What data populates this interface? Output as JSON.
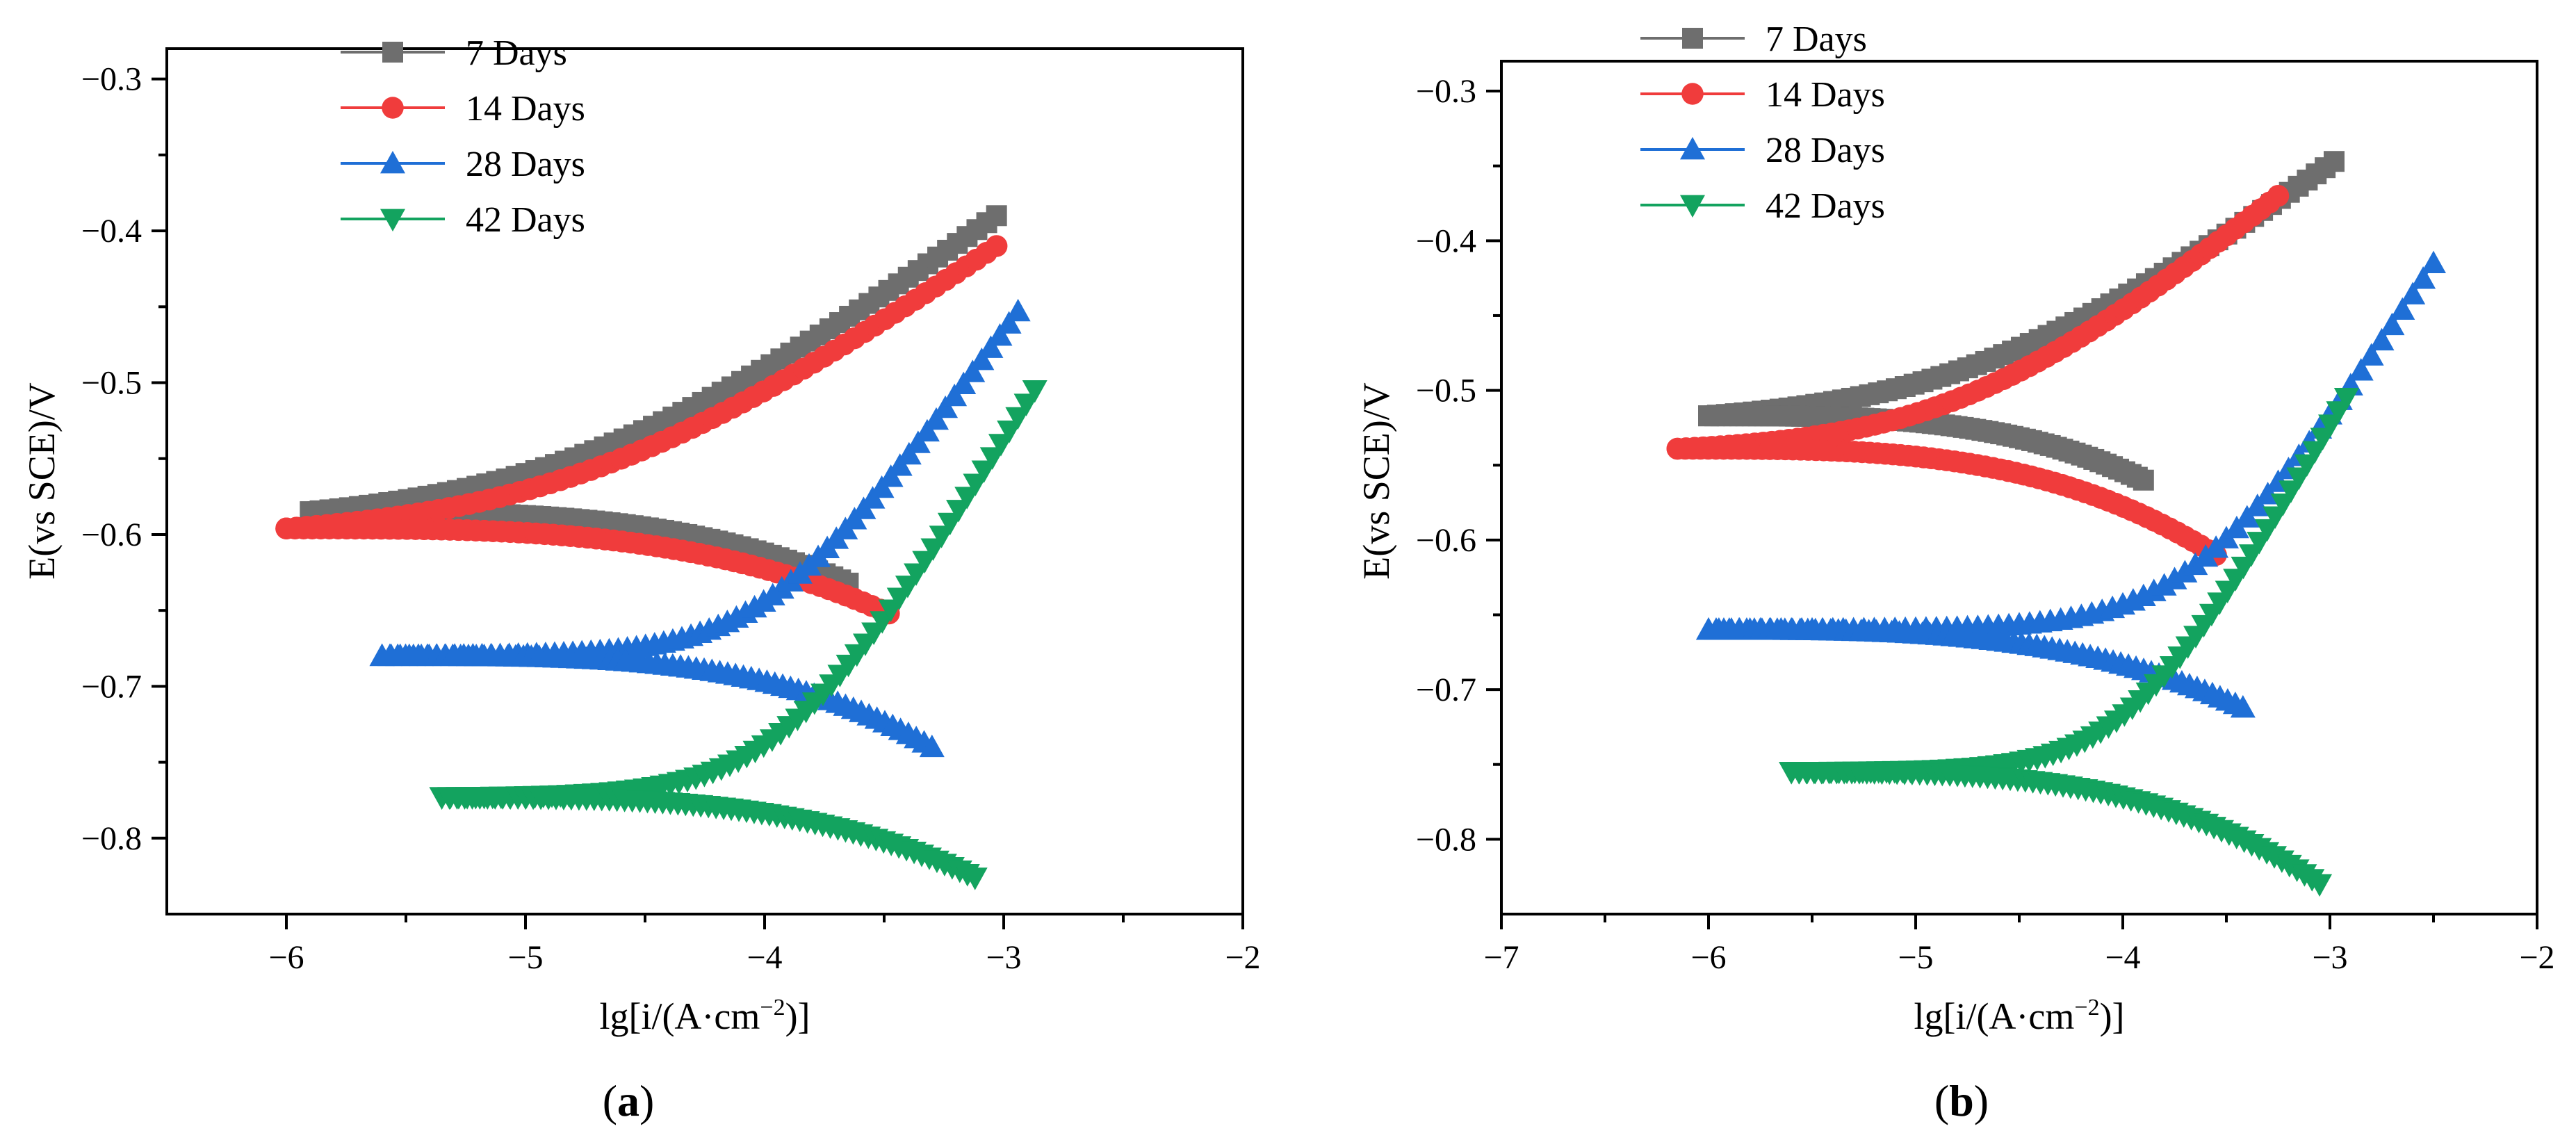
{
  "figure": {
    "panel_labels": [
      {
        "open": "(",
        "letter": "a",
        "close": ")"
      },
      {
        "open": "(",
        "letter": "b",
        "close": ")"
      }
    ]
  },
  "series_styles": [
    {
      "name": "7 Days",
      "color": "#6e6e6e",
      "marker": "square"
    },
    {
      "name": "14 Days",
      "color": "#f03c3c",
      "marker": "circle"
    },
    {
      "name": "28 Days",
      "color": "#1f6fd6",
      "marker": "triangle-up"
    },
    {
      "name": "42 Days",
      "color": "#13a35f",
      "marker": "triangle-down"
    }
  ],
  "chart_data": [
    {
      "type": "line",
      "panel": "a",
      "xlabel": {
        "base": "lg[i/(A·cm",
        "sup": "−2",
        "tail": ")]"
      },
      "ylabel": "E(vs SCE)/V",
      "xlim": [
        -6.5,
        -2
      ],
      "ylim": [
        -0.85,
        -0.28
      ],
      "x_ticks": [
        -6,
        -5,
        -4,
        -3,
        -2
      ],
      "x_tick_labels": [
        "−6",
        "−5",
        "−4",
        "−3",
        "−2"
      ],
      "y_ticks": [
        -0.8,
        -0.7,
        -0.6,
        -0.5,
        -0.4,
        -0.3
      ],
      "y_tick_labels": [
        "−0.8",
        "−0.7",
        "−0.6",
        "−0.5",
        "−0.4",
        "−0.3"
      ],
      "legend": [
        "7 Days",
        "14 Days",
        "28 Days",
        "42 Days"
      ],
      "legend_position": "top-left",
      "series": [
        {
          "name": "7 Days",
          "Ecorr": -0.585,
          "x_start": -5.9,
          "anodic_end": [
            -3.03,
            -0.39
          ],
          "cathodic_end": [
            -3.65,
            -0.632
          ],
          "cathodic_curvature": 2.0,
          "anodic_knee": 0.6
        },
        {
          "name": "14 Days",
          "Ecorr": -0.596,
          "x_start": -6.0,
          "anodic_end": [
            -3.03,
            -0.41
          ],
          "cathodic_end": [
            -3.48,
            -0.652
          ],
          "cathodic_curvature": 2.0,
          "anodic_knee": 0.6
        },
        {
          "name": "28 Days",
          "Ecorr": -0.68,
          "x_start": -5.6,
          "anodic_end": [
            -2.94,
            -0.453
          ],
          "cathodic_end": [
            -3.3,
            -0.74
          ],
          "cathodic_curvature": 2.2,
          "anodic_knee": 0.25
        },
        {
          "name": "42 Days",
          "Ecorr": -0.773,
          "x_start": -5.35,
          "anodic_end": [
            -2.87,
            -0.505
          ],
          "cathodic_end": [
            -3.12,
            -0.826
          ],
          "cathodic_curvature": 2.0,
          "anodic_knee": 0.25
        }
      ]
    },
    {
      "type": "line",
      "panel": "b",
      "xlabel": {
        "base": "lg[i/(A·cm",
        "sup": "−2",
        "tail": ")]"
      },
      "ylabel": "E(vs SCE)/V",
      "xlim": [
        -7,
        -2
      ],
      "ylim": [
        -0.85,
        -0.28
      ],
      "x_ticks": [
        -7,
        -6,
        -5,
        -4,
        -3,
        -2
      ],
      "x_tick_labels": [
        "−7",
        "−6",
        "−5",
        "−4",
        "−3",
        "−2"
      ],
      "y_ticks": [
        -0.8,
        -0.7,
        -0.6,
        -0.5,
        -0.4,
        -0.3
      ],
      "y_tick_labels": [
        "−0.8",
        "−0.7",
        "−0.6",
        "−0.5",
        "−0.4",
        "−0.3"
      ],
      "legend": [
        "7 Days",
        "14 Days",
        "28 Days",
        "42 Days"
      ],
      "legend_position": "top-left",
      "series": [
        {
          "name": "7 Days",
          "Ecorr": -0.517,
          "x_start": -6.0,
          "anodic_end": [
            -2.98,
            -0.347
          ],
          "cathodic_end": [
            -3.9,
            -0.56
          ],
          "cathodic_curvature": 2.0,
          "anodic_knee": 0.6
        },
        {
          "name": "14 Days",
          "Ecorr": -0.539,
          "x_start": -6.15,
          "anodic_end": [
            -3.25,
            -0.37
          ],
          "cathodic_end": [
            -3.55,
            -0.61
          ],
          "cathodic_curvature": 2.0,
          "anodic_knee": 0.5
        },
        {
          "name": "28 Days",
          "Ecorr": -0.66,
          "x_start": -6.0,
          "anodic_end": [
            -2.5,
            -0.415
          ],
          "cathodic_end": [
            -3.42,
            -0.712
          ],
          "cathodic_curvature": 2.0,
          "anodic_knee": 0.3
        },
        {
          "name": "42 Days",
          "Ecorr": -0.755,
          "x_start": -5.6,
          "anodic_end": [
            -2.92,
            -0.505
          ],
          "cathodic_end": [
            -3.05,
            -0.83
          ],
          "cathodic_curvature": 2.0,
          "anodic_knee": 0.25
        }
      ]
    }
  ]
}
